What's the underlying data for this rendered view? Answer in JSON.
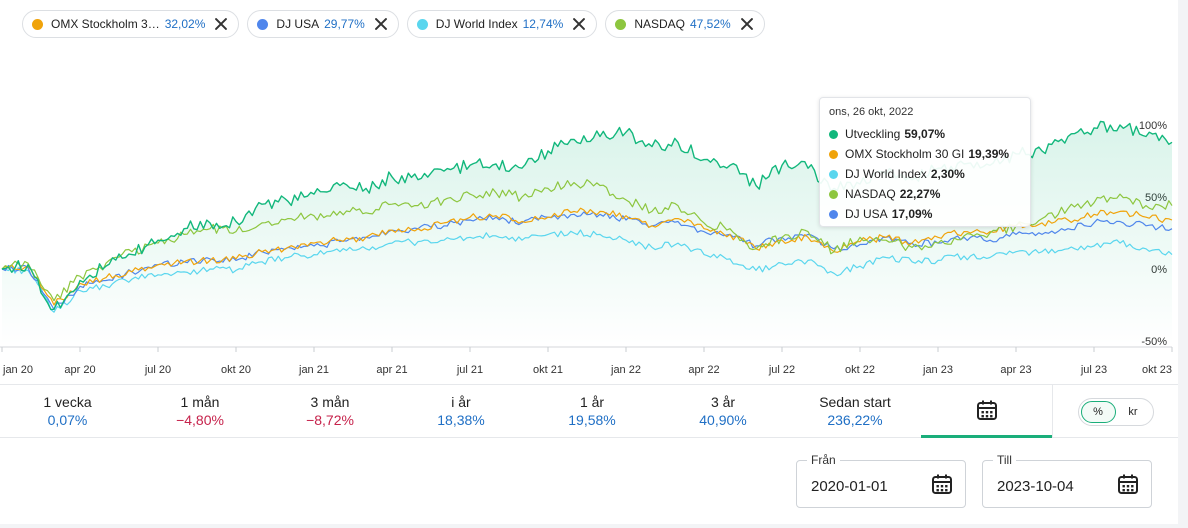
{
  "chips": [
    {
      "label": "OMX Stockholm 3…",
      "value": "32,02%",
      "color": "#f0a30a"
    },
    {
      "label": "DJ USA",
      "value": "29,77%",
      "color": "#4f86ec"
    },
    {
      "label": "DJ World Index",
      "value": "12,74%",
      "color": "#5ad6ee"
    },
    {
      "label": "NASDAQ",
      "value": "47,52%",
      "color": "#8dc63f"
    }
  ],
  "tooltip": {
    "date": "ons, 26 okt, 2022",
    "rows": [
      {
        "label": "Utveckling",
        "value": "59,07%",
        "color": "#12b77c"
      },
      {
        "label": "OMX Stockholm 30 GI",
        "value": "19,39%",
        "color": "#f0a30a"
      },
      {
        "label": "DJ World Index",
        "value": "2,30%",
        "color": "#5ad6ee"
      },
      {
        "label": "NASDAQ",
        "value": "22,27%",
        "color": "#8dc63f"
      },
      {
        "label": "DJ USA",
        "value": "17,09%",
        "color": "#4f86ec"
      }
    ]
  },
  "chart_data": {
    "type": "line",
    "y_unit": "%",
    "ylim": [
      -50,
      100
    ],
    "yticks": [
      -50,
      0,
      50,
      100
    ],
    "ytick_labels": [
      "-50%",
      "0%",
      "50%",
      "100%"
    ],
    "x_ticks": [
      "jan 20",
      "apr 20",
      "jul 20",
      "okt 20",
      "jan 21",
      "apr 21",
      "jul 21",
      "okt 21",
      "jan 22",
      "apr 22",
      "jul 22",
      "okt 22",
      "jan 23",
      "apr 23",
      "jul 23",
      "okt 23"
    ],
    "x": [
      "2020-01",
      "2020-02",
      "2020-03",
      "2020-04",
      "2020-05",
      "2020-06",
      "2020-07",
      "2020-08",
      "2020-09",
      "2020-10",
      "2020-11",
      "2020-12",
      "2021-01",
      "2021-02",
      "2021-03",
      "2021-04",
      "2021-05",
      "2021-06",
      "2021-07",
      "2021-08",
      "2021-09",
      "2021-10",
      "2021-11",
      "2021-12",
      "2022-01",
      "2022-02",
      "2022-03",
      "2022-04",
      "2022-05",
      "2022-06",
      "2022-07",
      "2022-08",
      "2022-09",
      "2022-10",
      "2022-11",
      "2022-12",
      "2023-01",
      "2023-02",
      "2023-03",
      "2023-04",
      "2023-05",
      "2023-06",
      "2023-07",
      "2023-08",
      "2023-09",
      "2023-10"
    ],
    "series": [
      {
        "name": "Utveckling",
        "color": "#12b77c",
        "values": [
          0,
          3,
          -28,
          -8,
          2,
          10,
          20,
          28,
          32,
          33,
          45,
          47,
          52,
          58,
          56,
          64,
          62,
          68,
          72,
          73,
          70,
          82,
          90,
          92,
          95,
          85,
          88,
          76,
          72,
          58,
          72,
          70,
          56,
          59,
          66,
          62,
          70,
          73,
          72,
          80,
          82,
          92,
          98,
          100,
          92,
          88
        ]
      },
      {
        "name": "NASDAQ",
        "values": [
          0,
          4,
          -22,
          -5,
          4,
          12,
          18,
          24,
          28,
          26,
          32,
          35,
          37,
          40,
          39,
          45,
          44,
          48,
          52,
          53,
          50,
          56,
          60,
          58,
          48,
          40,
          44,
          32,
          28,
          14,
          22,
          26,
          12,
          22,
          20,
          15,
          18,
          23,
          25,
          30,
          35,
          42,
          46,
          52,
          44,
          44
        ]
      },
      {
        "name": "OMX Stockholm 30 GI",
        "values": [
          0,
          2,
          -25,
          -10,
          -6,
          -2,
          3,
          5,
          6,
          7,
          12,
          15,
          18,
          20,
          22,
          27,
          28,
          32,
          36,
          37,
          33,
          36,
          40,
          40,
          37,
          30,
          35,
          28,
          24,
          14,
          20,
          22,
          12,
          19,
          22,
          18,
          22,
          26,
          26,
          30,
          32,
          34,
          38,
          40,
          36,
          34
        ]
      },
      {
        "name": "DJ USA",
        "values": [
          0,
          1,
          -28,
          -12,
          -8,
          -2,
          3,
          5,
          7,
          6,
          12,
          15,
          16,
          19,
          22,
          27,
          28,
          30,
          34,
          36,
          32,
          36,
          38,
          38,
          34,
          30,
          33,
          26,
          24,
          16,
          22,
          24,
          14,
          17,
          22,
          18,
          18,
          22,
          20,
          24,
          24,
          28,
          32,
          33,
          30,
          28
        ]
      },
      {
        "name": "DJ World Index",
        "values": [
          0,
          -1,
          -30,
          -15,
          -12,
          -7,
          -4,
          -2,
          0,
          -1,
          5,
          8,
          10,
          12,
          14,
          18,
          19,
          20,
          22,
          23,
          20,
          24,
          25,
          24,
          20,
          15,
          18,
          10,
          7,
          -1,
          4,
          6,
          -3,
          2,
          8,
          5,
          6,
          9,
          8,
          12,
          12,
          14,
          16,
          18,
          14,
          10
        ]
      }
    ]
  },
  "periods": [
    {
      "label": "1 vecka",
      "value": "0,07%",
      "sign": "pos"
    },
    {
      "label": "1 mån",
      "value": "−4,80%",
      "sign": "neg"
    },
    {
      "label": "3 mån",
      "value": "−8,72%",
      "sign": "neg"
    },
    {
      "label": "i år",
      "value": "18,38%",
      "sign": "pos"
    },
    {
      "label": "1 år",
      "value": "19,58%",
      "sign": "pos"
    },
    {
      "label": "3 år",
      "value": "40,90%",
      "sign": "pos"
    },
    {
      "label": "Sedan start",
      "value": "236,22%",
      "sign": "pos"
    }
  ],
  "unit_toggle": {
    "percent": "%",
    "currency": "kr",
    "selected": "%"
  },
  "date_from": {
    "label": "Från",
    "value": "2020-01-01"
  },
  "date_to": {
    "label": "Till",
    "value": "2023-10-04"
  },
  "icons": {
    "calendar": "calendar-icon",
    "close": "close-icon"
  }
}
